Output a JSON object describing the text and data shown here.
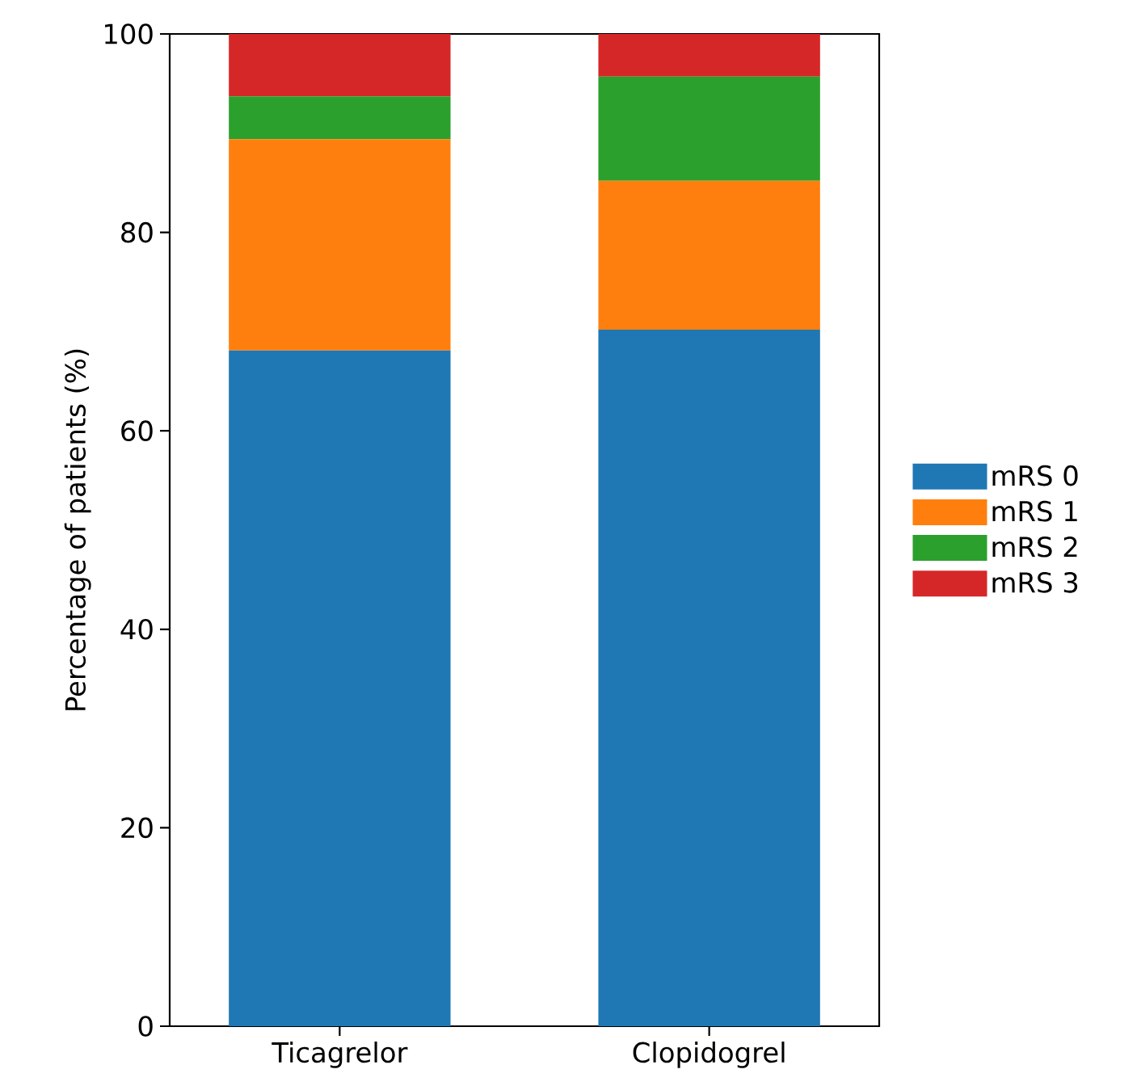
{
  "chart_data": {
    "type": "bar",
    "stacked": true,
    "ylabel": "Percentage of patients (%)",
    "categories": [
      "Ticagrelor",
      "Clopidogrel"
    ],
    "series": [
      {
        "name": "mRS 0",
        "color": "#1f77b4",
        "values": [
          68.1,
          70.2
        ]
      },
      {
        "name": "mRS 1",
        "color": "#ff7f0e",
        "values": [
          21.3,
          15.0
        ]
      },
      {
        "name": "mRS 2",
        "color": "#2ca02c",
        "values": [
          4.3,
          10.5
        ]
      },
      {
        "name": "mRS 3",
        "color": "#d62728",
        "values": [
          6.3,
          4.3
        ]
      }
    ],
    "ylim": [
      0,
      100
    ],
    "yticks": [
      0,
      20,
      40,
      60,
      80,
      100
    ],
    "legend": "right"
  }
}
